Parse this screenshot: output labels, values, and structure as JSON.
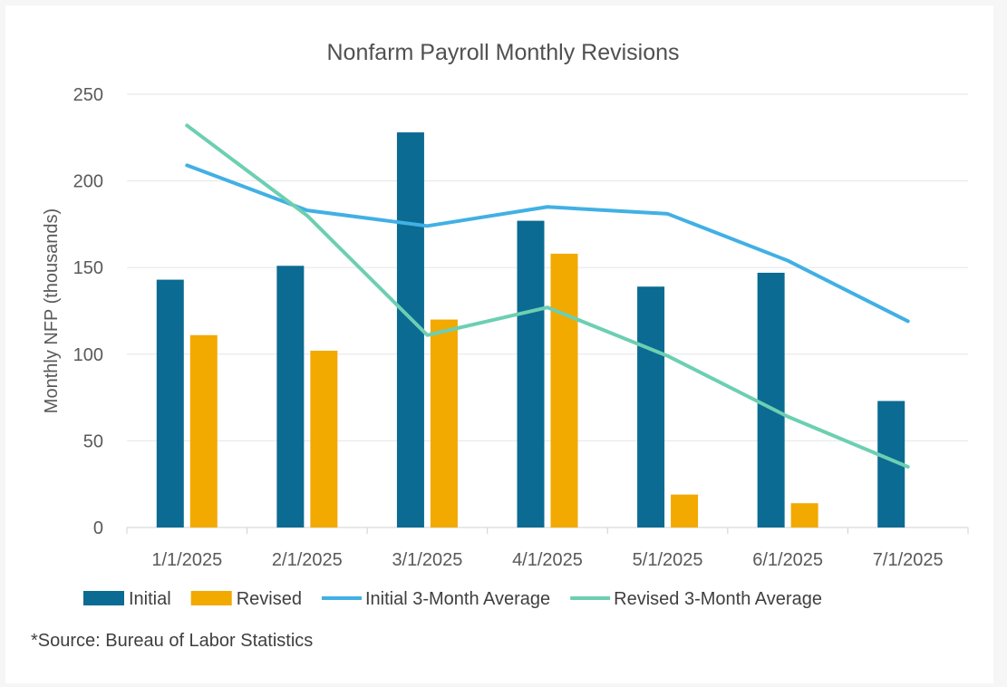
{
  "chart_data": {
    "type": "bar",
    "title": "Nonfarm Payroll Monthly Revisions",
    "xlabel": "",
    "ylabel": "Monthly NFP (thousands)",
    "ylim": [
      0,
      250
    ],
    "yticks": [
      0,
      50,
      100,
      150,
      200,
      250
    ],
    "grid": true,
    "categories": [
      "1/1/2025",
      "2/1/2025",
      "3/1/2025",
      "4/1/2025",
      "5/1/2025",
      "6/1/2025",
      "7/1/2025"
    ],
    "series": [
      {
        "name": "Initial",
        "type": "bar",
        "color": "#0b6b92",
        "values": [
          143,
          151,
          228,
          177,
          139,
          147,
          73
        ]
      },
      {
        "name": "Revised",
        "type": "bar",
        "color": "#f2a900",
        "values": [
          111,
          102,
          120,
          158,
          19,
          14,
          null
        ]
      },
      {
        "name": "Initial 3-Month Average",
        "type": "line",
        "color": "#41b0e4",
        "values": [
          209,
          183,
          174,
          185,
          181,
          154,
          119
        ]
      },
      {
        "name": "Revised 3-Month Average",
        "type": "line",
        "color": "#6ccfb2",
        "values": [
          232,
          180,
          111,
          127,
          99,
          64,
          35
        ]
      }
    ],
    "legend_position": "bottom"
  },
  "footnote": "*Source: Bureau of Labor Statistics"
}
